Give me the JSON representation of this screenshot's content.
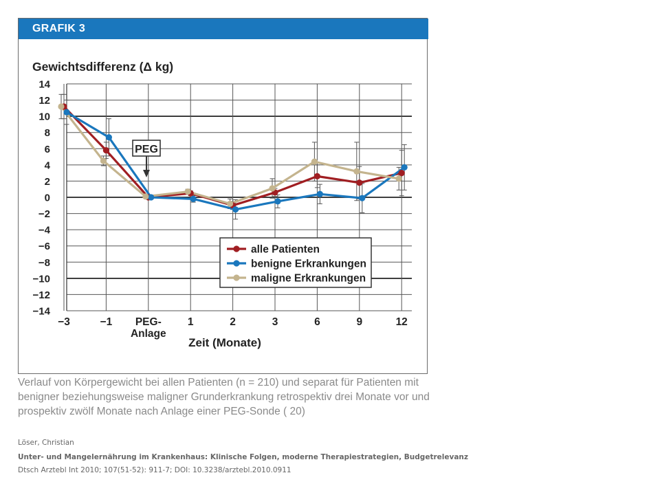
{
  "figure": {
    "header_label": "GRAFIK 3",
    "caption": "Verlauf von Körpergewicht bei allen Patienten (n = 210) und separat für Patienten mit benigner beziehungsweise maligner Grunderkrankung retrospektiv drei Monate vor und prospektiv zwölf Monate nach Anlage einer PEG-Sonde ( 20)",
    "colors": {
      "header": "#1a77bd",
      "all": "#a01e22",
      "benign": "#1a77bd",
      "malign": "#c4b48e"
    }
  },
  "citation": {
    "author": "Löser, Christian",
    "title": "Unter- und Mangelernährung im Krankenhaus: Klinische Folgen, moderne Therapiestrategien, Budgetrelevanz",
    "journal": "Dtsch Arztebl Int 2010; 107(51-52): 911-7; DOI: 10.3238/arztebl.2010.0911"
  },
  "chart_data": {
    "type": "line",
    "ylabel": "Gewichtsdifferenz (Δ kg)",
    "xlabel": "Zeit (Monate)",
    "categories": [
      "−3",
      "−1",
      "PEG-\nAnlage",
      "1",
      "2",
      "3",
      "6",
      "9",
      "12"
    ],
    "y_ticks": [
      "14",
      "12",
      "10",
      "8",
      "6",
      "4",
      "2",
      "0",
      "−2",
      "−4",
      "−6",
      "−8",
      "−10",
      "−12",
      "−14"
    ],
    "ylim": [
      -14,
      14
    ],
    "grid": true,
    "legend_position": "bottom-right",
    "annotation": {
      "text": "PEG",
      "category_index": 2
    },
    "series": [
      {
        "name": "alle Patienten",
        "color": "#a01e22",
        "offset": 0,
        "values": [
          11.2,
          5.8,
          0.0,
          0.5,
          -1.0,
          0.6,
          2.6,
          1.8,
          3.0
        ],
        "error": [
          1.5,
          1.0,
          0,
          0.3,
          0.5,
          0.5,
          1.4,
          2.0,
          2.8
        ]
      },
      {
        "name": "benigne Erkrankungen",
        "color": "#1a77bd",
        "offset": 4,
        "values": [
          10.5,
          7.4,
          0.0,
          -0.2,
          -1.5,
          -0.5,
          0.4,
          -0.1,
          3.7
        ],
        "error": [
          1.5,
          2.3,
          0,
          0.4,
          1.2,
          0.8,
          1.2,
          1.8,
          2.8
        ]
      },
      {
        "name": "maligne Erkrankungen",
        "color": "#c4b48e",
        "offset": -4,
        "values": [
          11.2,
          4.5,
          0.1,
          0.7,
          -0.8,
          1.1,
          4.4,
          3.2,
          2.3
        ],
        "error": [
          1.5,
          0.6,
          0,
          0.3,
          0.6,
          1.2,
          2.4,
          3.6,
          1.4
        ]
      }
    ]
  }
}
